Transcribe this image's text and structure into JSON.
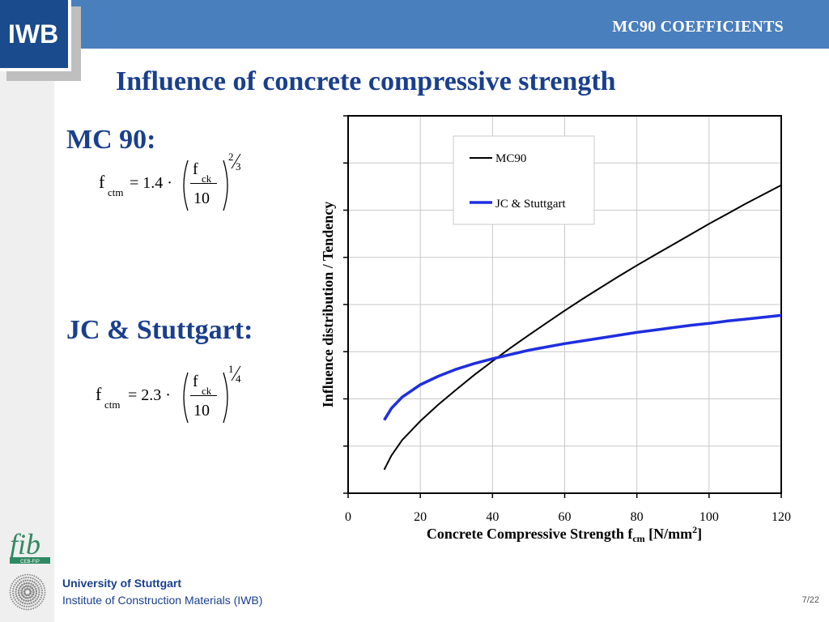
{
  "header": {
    "title": "MC90 COEFFICIENTS",
    "logo_text": "IWB"
  },
  "slide": {
    "title": "Influence of concrete compressive strength"
  },
  "sections": {
    "mc90": {
      "label": "MC 90:",
      "formula": {
        "lhs": "f",
        "lhs_sub": "ctm",
        "equals_coeff": "= 1.4 ·",
        "numerator": "f",
        "numerator_sub": "ck",
        "denominator": "10",
        "exp_num": "2",
        "exp_den": "3"
      }
    },
    "jc_stuttgart": {
      "label": "JC & Stuttgart:",
      "formula": {
        "lhs": "f",
        "lhs_sub": "ctm",
        "equals_coeff": "= 2.3 ·",
        "numerator": "f",
        "numerator_sub": "ck",
        "denominator": "10",
        "exp_num": "1",
        "exp_den": "4"
      }
    }
  },
  "footer": {
    "university": "University of Stuttgart",
    "institute": "Institute of Construction Materials (IWB)",
    "page": "7/22",
    "fib_text": "fib",
    "fib_sub": "CEB-FIP"
  },
  "colors": {
    "header_bg": "#4a7fbd",
    "title_blue": "#1a3f8c",
    "logo_bg": "#1a4b8c",
    "mc90_line": "#000000",
    "jc_line": "#1f2ee0"
  },
  "chart_data": {
    "type": "line",
    "title": "",
    "xlabel": "Concrete Compressive Strength f",
    "xlabel_sub": "cm",
    "xlabel_unit": " [N/mm",
    "xlabel_sup": "2",
    "xlabel_end": "]",
    "ylabel": "Influence distribution / Tendency",
    "xlim": [
      0,
      120
    ],
    "xticks": [
      0,
      20,
      40,
      60,
      80,
      100,
      120
    ],
    "ylim": [
      0,
      8
    ],
    "grid": true,
    "legend_position": "top-right",
    "series": [
      {
        "name": "MC90",
        "color": "#000000",
        "x": [
          10,
          12,
          15,
          20,
          25,
          30,
          35,
          40,
          45,
          50,
          55,
          60,
          65,
          70,
          75,
          80,
          85,
          90,
          95,
          100,
          105,
          110,
          115,
          120
        ],
        "y": [
          0.5,
          0.8,
          1.13,
          1.53,
          1.88,
          2.2,
          2.51,
          2.8,
          3.08,
          3.35,
          3.61,
          3.87,
          4.12,
          4.36,
          4.6,
          4.83,
          5.05,
          5.27,
          5.49,
          5.71,
          5.92,
          6.13,
          6.33,
          6.53
        ]
      },
      {
        "name": "JC & Stuttgart",
        "color": "#1f2ee0",
        "x": [
          10,
          12,
          15,
          20,
          25,
          30,
          35,
          40,
          45,
          50,
          55,
          60,
          65,
          70,
          75,
          80,
          85,
          90,
          95,
          100,
          105,
          110,
          115,
          120
        ],
        "y": [
          1.55,
          1.8,
          2.04,
          2.3,
          2.48,
          2.63,
          2.75,
          2.85,
          2.94,
          3.03,
          3.1,
          3.17,
          3.23,
          3.29,
          3.35,
          3.41,
          3.46,
          3.51,
          3.56,
          3.6,
          3.65,
          3.69,
          3.73,
          3.77
        ]
      }
    ]
  }
}
